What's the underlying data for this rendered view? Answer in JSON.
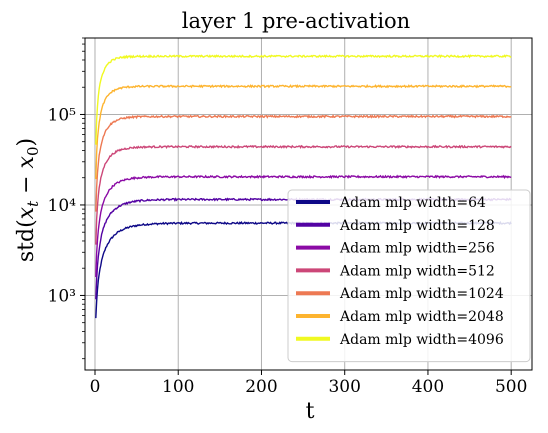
{
  "chart_data": {
    "type": "line",
    "title": "layer 1 pre-activation",
    "xlabel": "t",
    "ylabel": "std(x_t − x_0)",
    "xlim": [
      -12,
      525
    ],
    "ylim": [
      150,
      700000
    ],
    "yscale": "log",
    "grid": true,
    "legend_position": "lower right",
    "x_ticks": [
      "0",
      "100",
      "200",
      "300",
      "400",
      "500"
    ],
    "y_ticks": [
      {
        "value": 1000,
        "label": "10³"
      },
      {
        "value": 10000,
        "label": "10⁴"
      },
      {
        "value": 100000,
        "label": "10⁵"
      }
    ],
    "series": [
      {
        "name": "Adam mlp width=64",
        "color": "#0d0887",
        "start": 230,
        "plateau": 6300,
        "tau": 18
      },
      {
        "name": "Adam mlp width=128",
        "color": "#5302a3",
        "start": 220,
        "plateau": 11500,
        "tau": 16
      },
      {
        "name": "Adam mlp width=256",
        "color": "#8b0aa5",
        "start": 210,
        "plateau": 20500,
        "tau": 14
      },
      {
        "name": "Adam mlp width=512",
        "color": "#cc4778",
        "start": 200,
        "plateau": 44000,
        "tau": 12
      },
      {
        "name": "Adam mlp width=1024",
        "color": "#ed7953",
        "start": 190,
        "plateau": 95000,
        "tau": 11
      },
      {
        "name": "Adam mlp width=2048",
        "color": "#fdb42f",
        "start": 180,
        "plateau": 205000,
        "tau": 10
      },
      {
        "name": "Adam mlp width=4096",
        "color": "#f0f921",
        "start": 170,
        "plateau": 440000,
        "tau": 9
      }
    ]
  }
}
